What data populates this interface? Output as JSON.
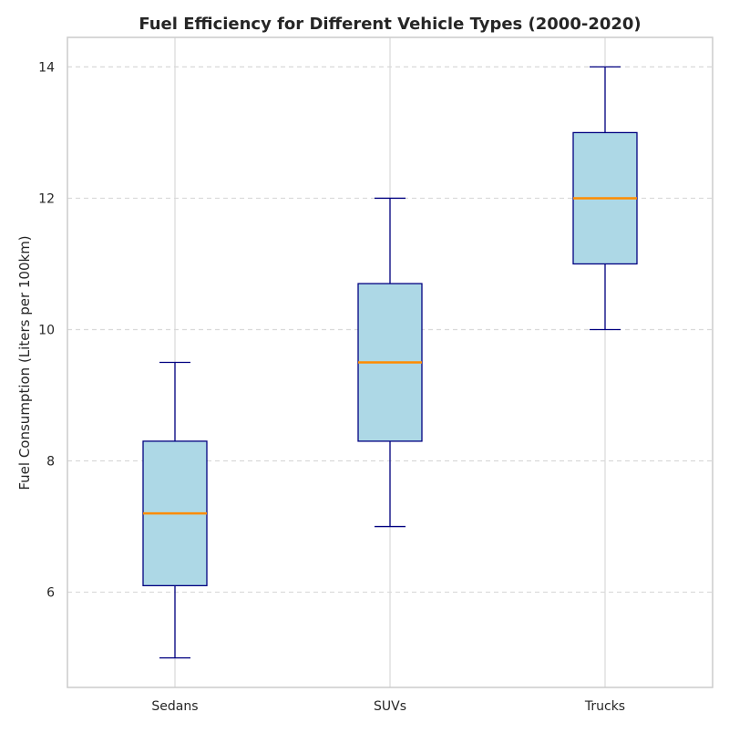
{
  "chart_data": {
    "type": "box",
    "title": "Fuel Efficiency for Different Vehicle Types (2000-2020)",
    "xlabel": "",
    "ylabel": "Fuel Consumption (Liters per 100km)",
    "ylim": [
      4.55,
      14.45
    ],
    "yticks": [
      6,
      8,
      10,
      12,
      14
    ],
    "grid": {
      "y": true,
      "x": true,
      "y_style": "dashed"
    },
    "categories": [
      "Sedans",
      "SUVs",
      "Trucks"
    ],
    "boxes": [
      {
        "category": "Sedans",
        "whisker_low": 5.0,
        "q1": 6.1,
        "median": 7.2,
        "q3": 8.3,
        "whisker_high": 9.5
      },
      {
        "category": "SUVs",
        "whisker_low": 7.0,
        "q1": 8.3,
        "median": 9.5,
        "q3": 10.7,
        "whisker_high": 12.0
      },
      {
        "category": "Trucks",
        "whisker_low": 10.0,
        "q1": 11.0,
        "median": 12.0,
        "q3": 13.0,
        "whisker_high": 14.0
      }
    ],
    "colors": {
      "box_fill": "#add8e6",
      "box_edge": "#000080",
      "median": "#ff8c00",
      "grid": "#d9d9d9",
      "frame": "#cccccc"
    }
  }
}
